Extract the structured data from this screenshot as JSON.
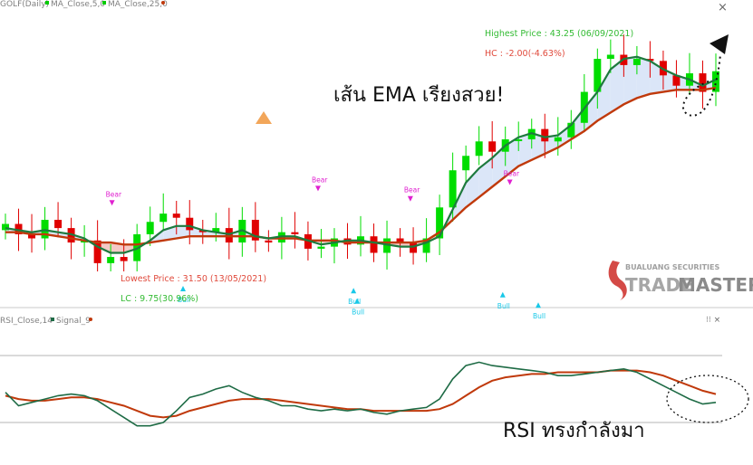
{
  "main_panel": {
    "legend_symbol": "GOLF(Daily)",
    "legend_ma5": "MA_Close,5,0",
    "legend_ma25": "MA_Close,25,0",
    "highest_label": "Highest Price : 43.25 (06/09/2021)",
    "hc_label": "HC : -2.00(-4.63%)",
    "lowest_label": "Lowest Price : 31.50 (13/05/2021)",
    "lc_label": "LC : 9.75(30.96%)",
    "caption": "เส้น EMA เรียงสวย!",
    "bear_label": "Bear",
    "bull_label": "Bull",
    "logo_top": "BUALUANG SECURITIES",
    "logo_trade": "TRADE",
    "logo_master": "MASTER",
    "window_close": "×"
  },
  "rsi_panel": {
    "legend_rsi": "RSI_Close,14",
    "legend_signal": "Signal_9",
    "caption": "RSI ทรงกำลังมา",
    "window_controls": "⁝⁝ ×"
  },
  "colors": {
    "candle_up": "#00dd00",
    "candle_down": "#e00000",
    "ma_fast": "#1e7a3e",
    "ma_slow": "#c0390b",
    "fill_bull": "#dbe6f8",
    "fill_bear": "#f4c9c6",
    "bear_signal": "#e020d0",
    "bull_signal": "#18c8e8",
    "rsi_line": "#1e6b45",
    "signal_line": "#c0390b",
    "rsi_overbought_fill": "#f2a65a",
    "annotation_red": "#e04a3c",
    "annotation_green": "#22bb22"
  },
  "chart_data": [
    {
      "type": "candlestick",
      "series": [
        {
          "name": "MA_Close,5,0",
          "values": [
            33.6,
            33.5,
            33.4,
            33.5,
            33.4,
            33.3,
            33.1,
            32.7,
            32.4,
            32.4,
            32.6,
            33.0,
            33.5,
            33.7,
            33.7,
            33.5,
            33.4,
            33.3,
            33.5,
            33.2,
            33.1,
            33.2,
            33.2,
            33.0,
            32.8,
            32.9,
            33.0,
            33.0,
            32.9,
            32.8,
            32.7,
            32.7,
            32.9,
            33.2,
            34.5,
            35.8,
            36.5,
            37.0,
            37.6,
            38.0,
            38.2,
            38.0,
            38.1,
            38.6,
            39.4,
            40.2,
            41.3,
            41.8,
            41.9,
            41.7,
            41.3,
            41.0,
            40.8,
            40.5,
            40.8
          ]
        },
        {
          "name": "MA_Close,25,0",
          "values": [
            33.4,
            33.4,
            33.3,
            33.3,
            33.2,
            33.1,
            33.0,
            32.9,
            32.9,
            32.8,
            32.8,
            32.9,
            33.0,
            33.1,
            33.2,
            33.2,
            33.2,
            33.2,
            33.2,
            33.2,
            33.1,
            33.1,
            33.1,
            33.0,
            33.0,
            33.0,
            32.9,
            32.9,
            32.9,
            32.9,
            32.9,
            32.9,
            33.0,
            33.4,
            34.0,
            34.6,
            35.1,
            35.6,
            36.1,
            36.6,
            36.9,
            37.2,
            37.5,
            37.9,
            38.3,
            38.8,
            39.2,
            39.6,
            39.9,
            40.1,
            40.2,
            40.3,
            40.3,
            40.3,
            40.4
          ]
        }
      ],
      "close": [
        33.8,
        33.3,
        33.1,
        34.0,
        33.6,
        32.9,
        33.0,
        31.9,
        32.2,
        32.0,
        33.3,
        33.9,
        34.3,
        34.1,
        33.5,
        33.4,
        33.6,
        32.9,
        34.0,
        33.0,
        32.9,
        33.4,
        33.3,
        32.6,
        32.7,
        33.1,
        32.8,
        33.2,
        32.4,
        33.1,
        32.9,
        32.4,
        33.1,
        34.6,
        36.4,
        37.1,
        37.8,
        37.3,
        37.9,
        37.9,
        38.4,
        37.8,
        38.0,
        38.7,
        40.2,
        41.8,
        42.0,
        41.5,
        41.8,
        41.7,
        41.0,
        40.5,
        41.1,
        40.2,
        41.2
      ],
      "highest_price": 43.25,
      "lowest_price": 31.5,
      "signals": {
        "Bear": [
          "bear1",
          "bear2",
          "bear3",
          "bear4"
        ],
        "Bull": [
          "bull1",
          "bull2",
          "bull3",
          "bull4"
        ]
      },
      "xlabel": "",
      "ylabel": ""
    },
    {
      "type": "line",
      "series": [
        {
          "name": "RSI_Close,14",
          "values": [
            48,
            40,
            42,
            44,
            46,
            47,
            46,
            43,
            38,
            33,
            28,
            28,
            30,
            37,
            45,
            47,
            50,
            52,
            48,
            45,
            43,
            40,
            40,
            38,
            37,
            38,
            37,
            38,
            36,
            35,
            37,
            38,
            39,
            44,
            56,
            64,
            66,
            64,
            63,
            62,
            61,
            60,
            58,
            58,
            59,
            60,
            61,
            62,
            60,
            56,
            52,
            48,
            44,
            41,
            42
          ]
        },
        {
          "name": "Signal_9",
          "values": [
            46,
            44,
            43,
            43,
            44,
            45,
            45,
            44,
            42,
            40,
            37,
            34,
            33,
            34,
            37,
            39,
            41,
            43,
            44,
            44,
            44,
            43,
            42,
            41,
            40,
            39,
            38,
            38,
            37,
            37,
            37,
            37,
            37,
            38,
            41,
            46,
            51,
            55,
            57,
            58,
            59,
            59,
            60,
            60,
            60,
            60,
            61,
            61,
            61,
            60,
            58,
            55,
            52,
            49,
            47
          ]
        }
      ],
      "overbought_level": 70,
      "oversold_level": 30,
      "xlabel": "",
      "ylabel": ""
    }
  ]
}
